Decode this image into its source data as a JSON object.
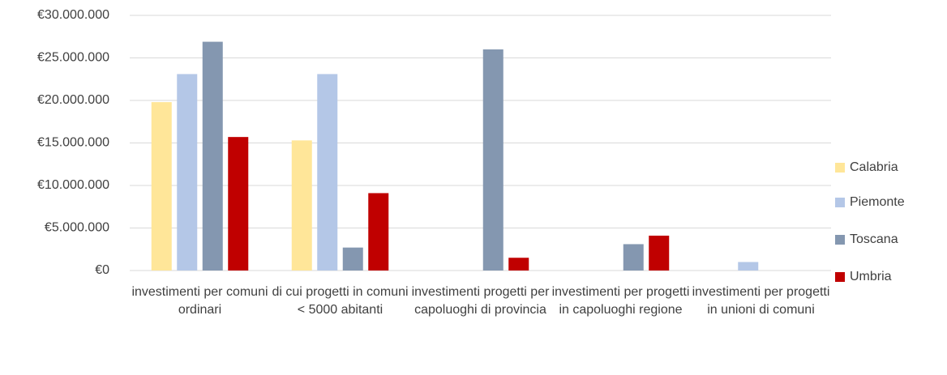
{
  "chart_data": {
    "type": "bar",
    "categories": [
      "investimenti per comuni ordinari",
      "di cui progetti in comuni < 5000 abitanti",
      "investimenti progetti per capoluoghi di provincia",
      "investimenti per progetti in capoluoghi regione",
      "investimenti per progetti in unioni di comuni"
    ],
    "series": [
      {
        "name": "Calabria",
        "color": "#ffe699",
        "values": [
          19800000,
          15300000,
          0,
          0,
          0
        ]
      },
      {
        "name": "Piemonte",
        "color": "#b4c7e7",
        "values": [
          23100000,
          23100000,
          0,
          0,
          1000000
        ]
      },
      {
        "name": "Toscana",
        "color": "#8497b0",
        "values": [
          26900000,
          2700000,
          26000000,
          3100000,
          0
        ]
      },
      {
        "name": "Umbria",
        "color": "#c00000",
        "values": [
          15700000,
          9100000,
          1500000,
          4100000,
          0
        ]
      }
    ],
    "ylim": [
      0,
      30000000
    ],
    "yticks": [
      {
        "value": 0,
        "label": "€0"
      },
      {
        "value": 5000000,
        "label": "€5.000.000"
      },
      {
        "value": 10000000,
        "label": "€10.000.000"
      },
      {
        "value": 15000000,
        "label": "€15.000.000"
      },
      {
        "value": 20000000,
        "label": "€20.000.000"
      },
      {
        "value": 25000000,
        "label": "€25.000.000"
      },
      {
        "value": 30000000,
        "label": "€30.000.000"
      }
    ],
    "grid": true,
    "legend": "right"
  }
}
